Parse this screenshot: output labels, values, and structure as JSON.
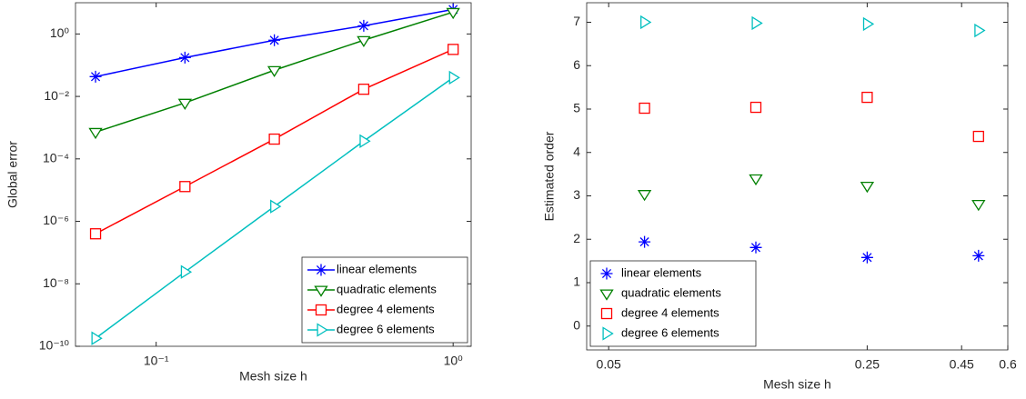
{
  "chart_data": [
    {
      "type": "line",
      "xlabel": "Mesh size h",
      "ylabel": "Global error",
      "xscale": "log",
      "yscale": "log",
      "x": [
        0.0625,
        0.125,
        0.25,
        0.5,
        1
      ],
      "xlim": [
        0.0535,
        1.15
      ],
      "xticks": [
        {
          "value": 0.1,
          "label": "10⁻¹"
        },
        {
          "value": 1,
          "label": "10⁰"
        }
      ],
      "ylim": [
        1e-10,
        10
      ],
      "yticks": [
        {
          "value": 1e-10,
          "label": "10⁻¹⁰"
        },
        {
          "value": 1e-08,
          "label": "10⁻⁸"
        },
        {
          "value": 1e-06,
          "label": "10⁻⁶"
        },
        {
          "value": 0.0001,
          "label": "10⁻⁴"
        },
        {
          "value": 0.01,
          "label": "10⁻²"
        },
        {
          "value": 1,
          "label": "10⁰"
        }
      ],
      "legend": "lower right",
      "series": [
        {
          "name": "linear elements",
          "color": "#0000ff",
          "marker": "asterisk",
          "values": [
            0.043,
            0.175,
            0.63,
            1.83,
            6.1
          ]
        },
        {
          "name": "quadratic elements",
          "color": "#008000",
          "marker": "triangle-down",
          "values": [
            0.00072,
            0.0062,
            0.069,
            0.63,
            5.0
          ]
        },
        {
          "name": "degree 4 elements",
          "color": "#ff0000",
          "marker": "square",
          "values": [
            4e-07,
            1.3e-05,
            0.00043,
            0.017,
            0.32
          ]
        },
        {
          "name": "degree 6 elements",
          "color": "#00bfbf",
          "marker": "triangle-right",
          "values": [
            1.8e-10,
            2.4e-08,
            3e-06,
            0.00037,
            0.04
          ]
        }
      ]
    },
    {
      "type": "scatter",
      "xlabel": "Mesh size h",
      "ylabel": "Estimated order",
      "xscale": "log",
      "x": [
        0.0625,
        0.125,
        0.25,
        0.5
      ],
      "xlim": [
        0.0436,
        0.6
      ],
      "xticks": [
        0.05,
        0.25,
        0.45,
        0.6
      ],
      "ylim": [
        -0.55,
        7.45
      ],
      "yticks": [
        0,
        1,
        2,
        3,
        4,
        5,
        6,
        7
      ],
      "legend": "lower left",
      "series": [
        {
          "name": "linear elements",
          "color": "#0000ff",
          "marker": "asterisk",
          "values": [
            1.94,
            1.81,
            1.58,
            1.62
          ]
        },
        {
          "name": "quadratic elements",
          "color": "#008000",
          "marker": "triangle-down",
          "values": [
            3.04,
            3.4,
            3.23,
            2.81
          ]
        },
        {
          "name": "degree 4 elements",
          "color": "#ff0000",
          "marker": "square",
          "values": [
            5.02,
            5.04,
            5.27,
            4.37
          ]
        },
        {
          "name": "degree 6 elements",
          "color": "#00bfbf",
          "marker": "triangle-right",
          "values": [
            7.0,
            6.98,
            6.96,
            6.81
          ]
        }
      ]
    }
  ]
}
